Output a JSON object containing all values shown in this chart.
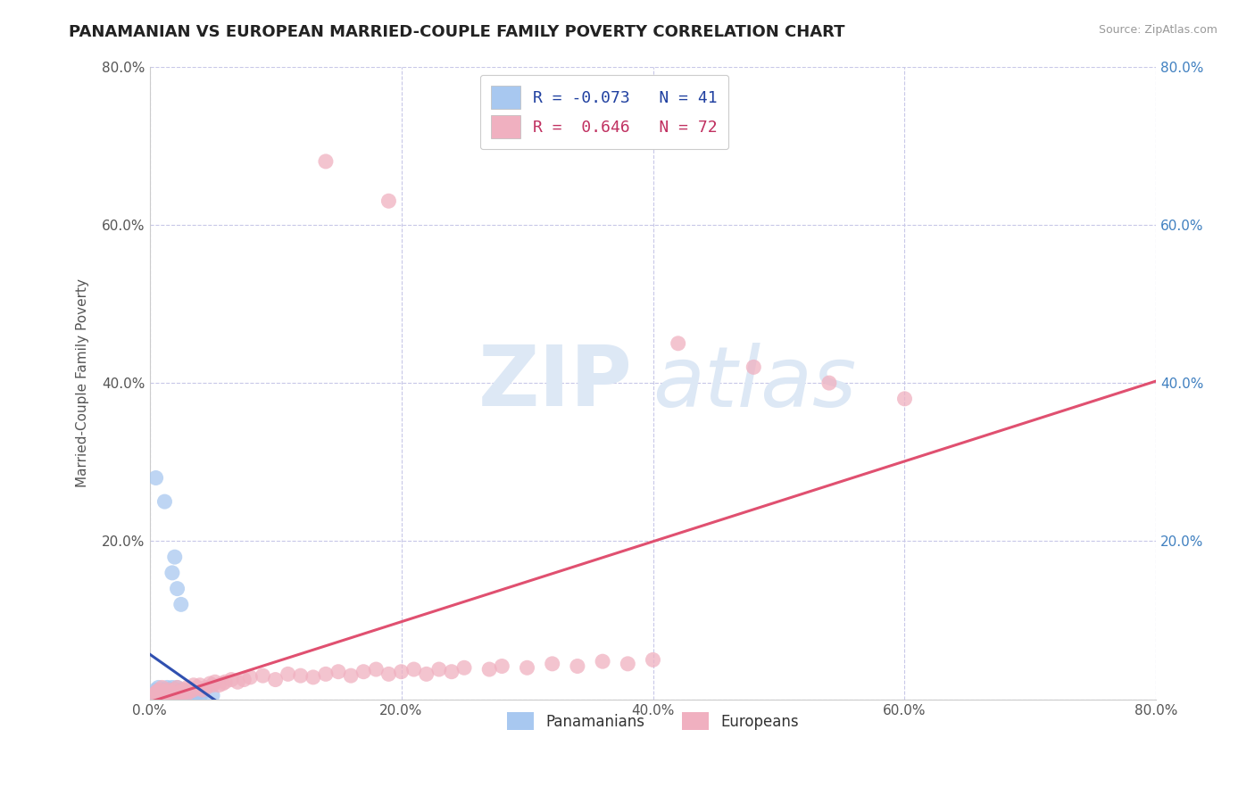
{
  "title": "PANAMANIAN VS EUROPEAN MARRIED-COUPLE FAMILY POVERTY CORRELATION CHART",
  "source": "Source: ZipAtlas.com",
  "ylabel": "Married-Couple Family Poverty",
  "xlim": [
    0.0,
    0.8
  ],
  "ylim": [
    0.0,
    0.8
  ],
  "xtick_labels": [
    "0.0%",
    "20.0%",
    "40.0%",
    "60.0%",
    "80.0%"
  ],
  "ytick_labels": [
    "",
    "20.0%",
    "40.0%",
    "60.0%",
    "80.0%"
  ],
  "xtick_vals": [
    0.0,
    0.2,
    0.4,
    0.6,
    0.8
  ],
  "ytick_vals": [
    0.0,
    0.2,
    0.4,
    0.6,
    0.8
  ],
  "legend_R_blue": "-0.073",
  "legend_N_blue": "41",
  "legend_R_pink": "0.646",
  "legend_N_pink": "72",
  "blue_color": "#a8c8f0",
  "pink_color": "#f0b0c0",
  "blue_line_color": "#3050b0",
  "pink_line_color": "#e05070",
  "blue_scatter": [
    [
      0.003,
      0.005
    ],
    [
      0.004,
      0.008
    ],
    [
      0.005,
      0.012
    ],
    [
      0.006,
      0.005
    ],
    [
      0.007,
      0.015
    ],
    [
      0.008,
      0.006
    ],
    [
      0.009,
      0.008
    ],
    [
      0.01,
      0.01
    ],
    [
      0.01,
      0.005
    ],
    [
      0.012,
      0.012
    ],
    [
      0.013,
      0.008
    ],
    [
      0.014,
      0.015
    ],
    [
      0.015,
      0.005
    ],
    [
      0.015,
      0.01
    ],
    [
      0.016,
      0.012
    ],
    [
      0.018,
      0.008
    ],
    [
      0.018,
      0.015
    ],
    [
      0.019,
      0.01
    ],
    [
      0.02,
      0.012
    ],
    [
      0.02,
      0.005
    ],
    [
      0.022,
      0.008
    ],
    [
      0.022,
      0.015
    ],
    [
      0.023,
      0.01
    ],
    [
      0.025,
      0.005
    ],
    [
      0.025,
      0.012
    ],
    [
      0.027,
      0.008
    ],
    [
      0.028,
      0.01
    ],
    [
      0.03,
      0.005
    ],
    [
      0.03,
      0.008
    ],
    [
      0.032,
      0.01
    ],
    [
      0.035,
      0.005
    ],
    [
      0.038,
      0.008
    ],
    [
      0.04,
      0.005
    ],
    [
      0.042,
      0.008
    ],
    [
      0.05,
      0.005
    ],
    [
      0.005,
      0.28
    ],
    [
      0.012,
      0.25
    ],
    [
      0.02,
      0.18
    ],
    [
      0.018,
      0.16
    ],
    [
      0.022,
      0.14
    ],
    [
      0.025,
      0.12
    ]
  ],
  "pink_scatter": [
    [
      0.003,
      0.005
    ],
    [
      0.005,
      0.008
    ],
    [
      0.006,
      0.01
    ],
    [
      0.007,
      0.005
    ],
    [
      0.008,
      0.012
    ],
    [
      0.009,
      0.008
    ],
    [
      0.01,
      0.015
    ],
    [
      0.01,
      0.005
    ],
    [
      0.012,
      0.008
    ],
    [
      0.013,
      0.01
    ],
    [
      0.014,
      0.005
    ],
    [
      0.015,
      0.008
    ],
    [
      0.015,
      0.012
    ],
    [
      0.016,
      0.01
    ],
    [
      0.018,
      0.008
    ],
    [
      0.02,
      0.012
    ],
    [
      0.02,
      0.005
    ],
    [
      0.022,
      0.015
    ],
    [
      0.023,
      0.008
    ],
    [
      0.025,
      0.01
    ],
    [
      0.025,
      0.005
    ],
    [
      0.028,
      0.012
    ],
    [
      0.03,
      0.015
    ],
    [
      0.03,
      0.008
    ],
    [
      0.032,
      0.01
    ],
    [
      0.035,
      0.012
    ],
    [
      0.035,
      0.018
    ],
    [
      0.038,
      0.015
    ],
    [
      0.04,
      0.018
    ],
    [
      0.042,
      0.012
    ],
    [
      0.045,
      0.015
    ],
    [
      0.048,
      0.02
    ],
    [
      0.05,
      0.018
    ],
    [
      0.052,
      0.022
    ],
    [
      0.055,
      0.018
    ],
    [
      0.058,
      0.02
    ],
    [
      0.06,
      0.022
    ],
    [
      0.065,
      0.025
    ],
    [
      0.07,
      0.022
    ],
    [
      0.075,
      0.025
    ],
    [
      0.08,
      0.028
    ],
    [
      0.09,
      0.03
    ],
    [
      0.1,
      0.025
    ],
    [
      0.11,
      0.032
    ],
    [
      0.12,
      0.03
    ],
    [
      0.13,
      0.028
    ],
    [
      0.14,
      0.032
    ],
    [
      0.15,
      0.035
    ],
    [
      0.16,
      0.03
    ],
    [
      0.17,
      0.035
    ],
    [
      0.18,
      0.038
    ],
    [
      0.19,
      0.032
    ],
    [
      0.2,
      0.035
    ],
    [
      0.21,
      0.038
    ],
    [
      0.22,
      0.032
    ],
    [
      0.23,
      0.038
    ],
    [
      0.24,
      0.035
    ],
    [
      0.25,
      0.04
    ],
    [
      0.27,
      0.038
    ],
    [
      0.28,
      0.042
    ],
    [
      0.3,
      0.04
    ],
    [
      0.32,
      0.045
    ],
    [
      0.34,
      0.042
    ],
    [
      0.36,
      0.048
    ],
    [
      0.38,
      0.045
    ],
    [
      0.4,
      0.05
    ],
    [
      0.14,
      0.68
    ],
    [
      0.19,
      0.63
    ],
    [
      0.42,
      0.45
    ],
    [
      0.48,
      0.42
    ],
    [
      0.54,
      0.4
    ],
    [
      0.6,
      0.38
    ]
  ],
  "background_color": "#ffffff",
  "grid_color": "#c8c8e8",
  "title_fontsize": 13,
  "axis_fontsize": 11,
  "right_tick_color": "#4080c0",
  "blue_line_x_solid_end": 0.28,
  "pink_line_intercept": 0.045,
  "pink_line_slope": 0.5
}
